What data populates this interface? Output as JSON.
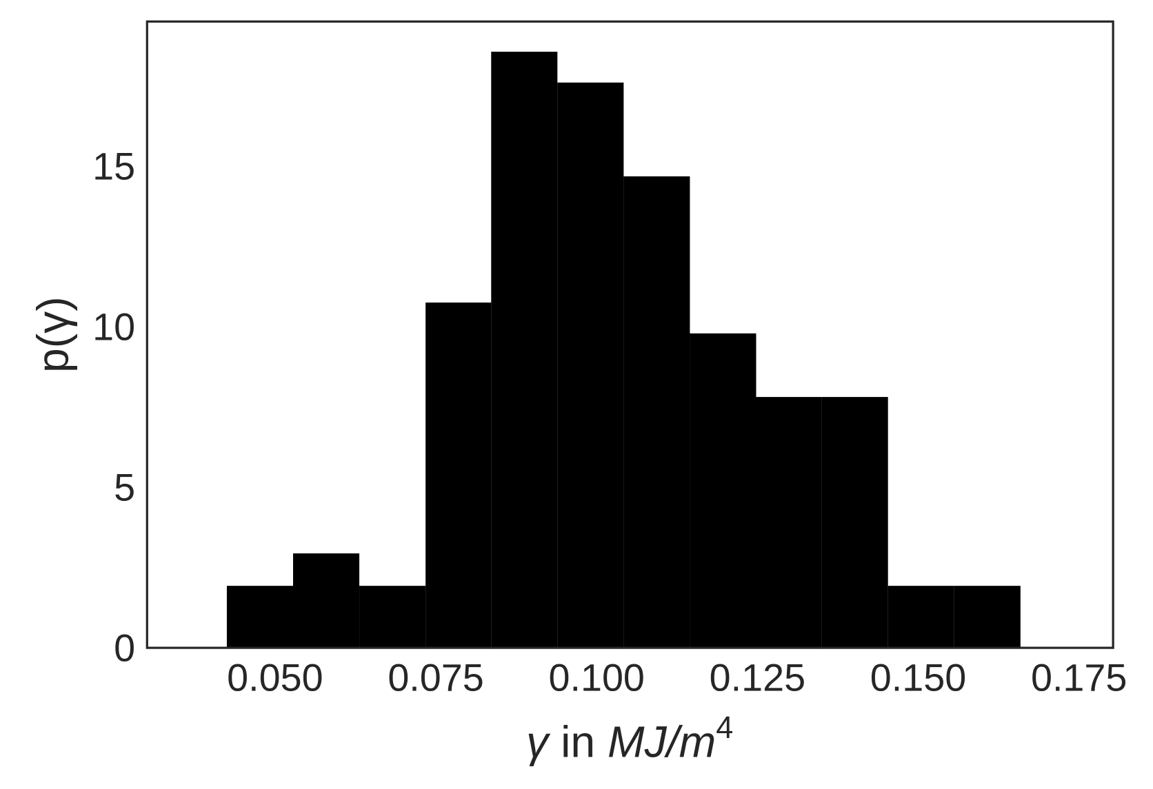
{
  "chart_data": {
    "type": "histogram",
    "xlabel": [
      "γ",
      " in ",
      "MJ/m",
      "4"
    ],
    "ylabel": "p(γ)",
    "bins": [
      0.0425,
      0.0528,
      0.0631,
      0.0734,
      0.0836,
      0.0939,
      0.1042,
      0.1145,
      0.1248,
      0.135,
      0.1453,
      0.1556,
      0.1659
    ],
    "values": [
      1.93,
      2.94,
      1.93,
      10.75,
      18.56,
      17.6,
      14.68,
      9.79,
      7.81,
      7.81,
      1.93,
      1.93
    ],
    "color": "#000000",
    "xlim": [
      0.0301,
      0.1803
    ],
    "ylim": [
      0,
      19.5
    ],
    "xticks": [
      {
        "value": 0.05,
        "label": "0.050"
      },
      0.075,
      {
        "value": 0.1,
        "label": "0.100"
      },
      0.125,
      {
        "value": 0.15,
        "label": "0.150"
      },
      0.175
    ],
    "yticks": [
      0,
      5,
      10,
      15
    ],
    "grid": false
  }
}
